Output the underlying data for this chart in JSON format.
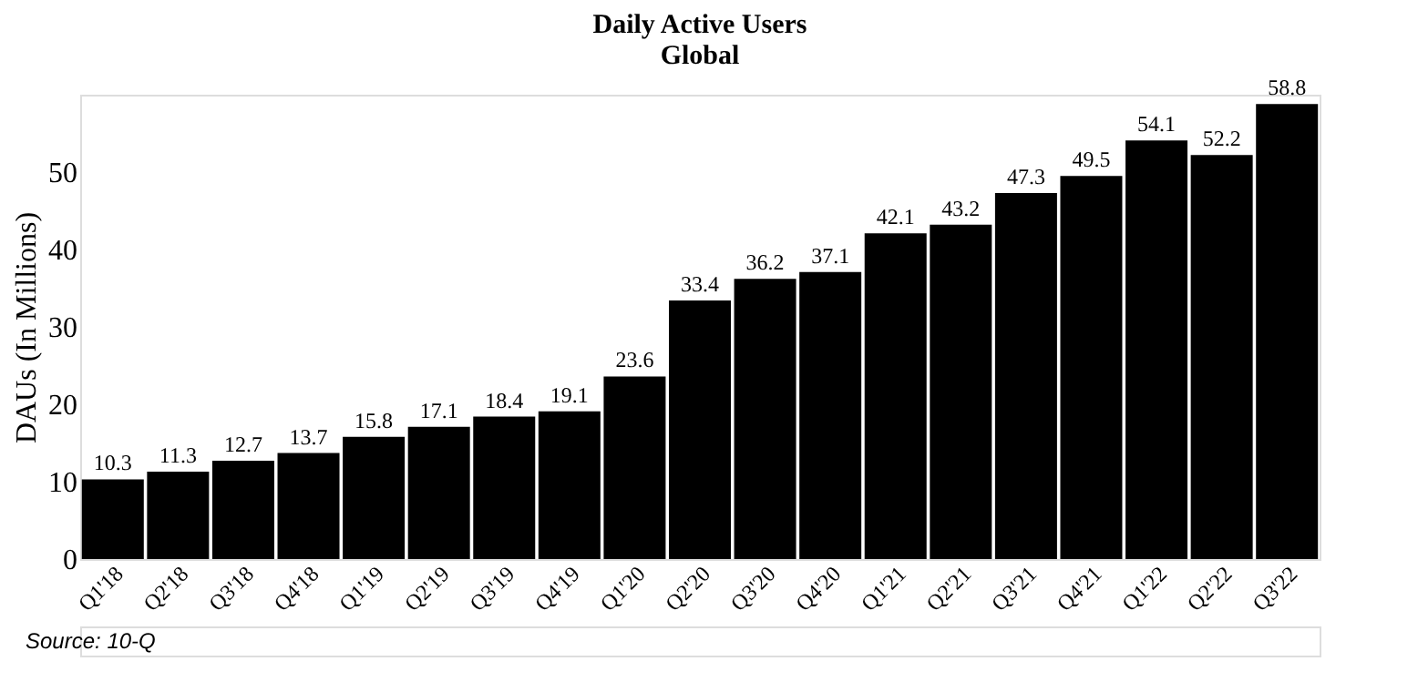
{
  "chart_data": {
    "type": "bar",
    "title": "Daily Active Users",
    "subtitle": "Global",
    "ylabel": "DAUs (In Millions)",
    "categories": [
      "Q1'18",
      "Q2'18",
      "Q3'18",
      "Q4'18",
      "Q1'19",
      "Q2'19",
      "Q3'19",
      "Q4'19",
      "Q1'20",
      "Q2'20",
      "Q3'20",
      "Q4'20",
      "Q1'21",
      "Q2'21",
      "Q3'21",
      "Q4'21",
      "Q1'22",
      "Q2'22",
      "Q3'22"
    ],
    "values": [
      10.3,
      11.3,
      12.7,
      13.7,
      15.8,
      17.1,
      18.4,
      19.1,
      23.6,
      33.4,
      36.2,
      37.1,
      42.1,
      43.2,
      47.3,
      49.5,
      54.1,
      52.2,
      58.8
    ],
    "color": "#000000",
    "ylim": [
      0,
      60
    ],
    "yticks": [
      0,
      10,
      20,
      30,
      40,
      50
    ],
    "grid": false,
    "data_labels": true,
    "annotations": [
      "Source: 10-Q"
    ]
  }
}
